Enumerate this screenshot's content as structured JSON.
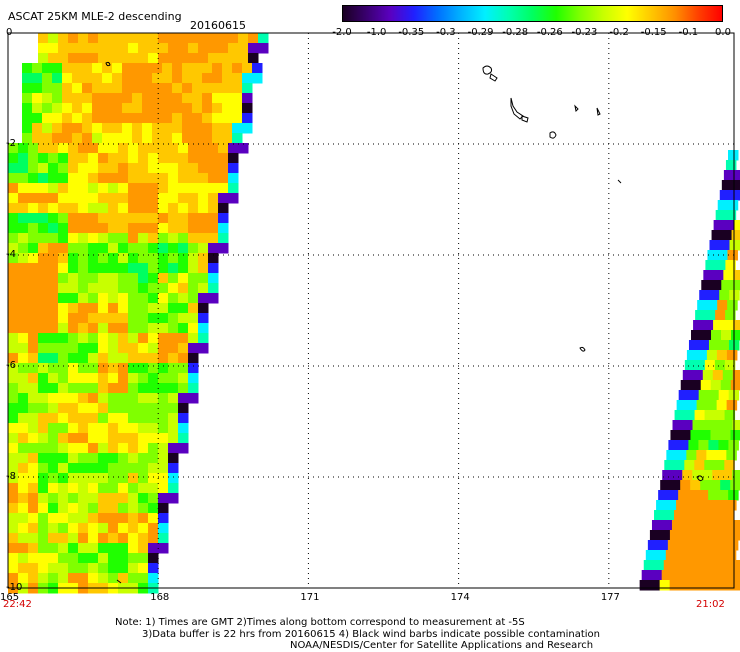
{
  "header": {
    "title": "ASCAT 25KM MLE-2 descending",
    "date": "20160615"
  },
  "colorbar": {
    "colors": [
      "#1a0022",
      "#3a0070",
      "#5a00c0",
      "#2020ff",
      "#0070ff",
      "#00b4ff",
      "#00f0ff",
      "#00ffb0",
      "#00ff60",
      "#20ff00",
      "#80ff00",
      "#c8ff00",
      "#ffff00",
      "#ffc800",
      "#ff9000",
      "#ff4000",
      "#ff0000"
    ],
    "labels": [
      "-2.0",
      "-1.0",
      "-0.35",
      "-0.3",
      "-0.29",
      "-0.28",
      "-0.26",
      "-0.23",
      "-0.2",
      "-0.15",
      "-0.1",
      "0.0"
    ]
  },
  "map": {
    "lon_ticks": [
      "165",
      "168",
      "171",
      "174",
      "177"
    ],
    "lat_ticks": [
      "0",
      "-2",
      "-4",
      "-6",
      "-8",
      "-10"
    ],
    "lon_range": [
      165,
      179.5
    ],
    "lat_range": [
      0,
      -10
    ]
  },
  "times": {
    "left": "22:42",
    "right": "21:02"
  },
  "footer": {
    "line1": "Note: 1) Times are GMT 2)Times along bottom correspond to measurement at -5S",
    "line2": "3)Data buffer is 22 hrs from 20160615 4) Black wind barbs indicate possible contamination",
    "line3": "NOAA/NESDIS/Center for Satellite Applications and Research"
  }
}
